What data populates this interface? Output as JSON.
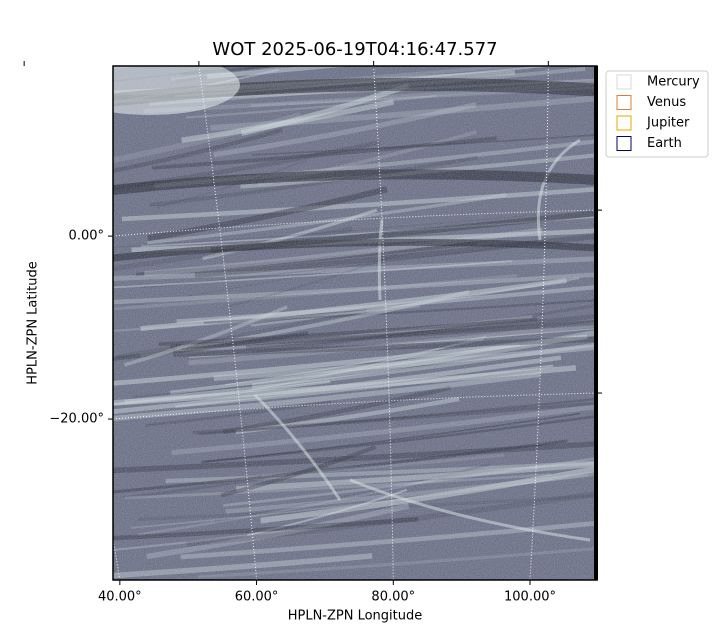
{
  "chart_data": {
    "type": "image",
    "title": "WOT 2025-06-19T04:16:47.577",
    "x_label": "HPLN-ZPN Longitude",
    "y_label": "HPLN-ZPN Latitude",
    "xlim": [
      39,
      109.8
    ],
    "ylim": [
      -37.6,
      18.6
    ],
    "xticks": [
      {
        "value": 40,
        "label": "40.00°"
      },
      {
        "value": 60,
        "label": "60.00°"
      },
      {
        "value": 80,
        "label": "80.00°"
      },
      {
        "value": 100,
        "label": "100.00°"
      }
    ],
    "yticks": [
      {
        "value": -20,
        "label": "−20.00°"
      },
      {
        "value": 0,
        "label": "0.00°"
      }
    ],
    "grid": true,
    "legend": "outside upper right",
    "series": [
      {
        "name": "Mercury",
        "color": "#d9d9d9"
      },
      {
        "name": "Venus",
        "color": "#e07b39"
      },
      {
        "name": "Jupiter",
        "color": "#e0a800"
      },
      {
        "name": "Earth",
        "color": "#000080"
      }
    ]
  }
}
